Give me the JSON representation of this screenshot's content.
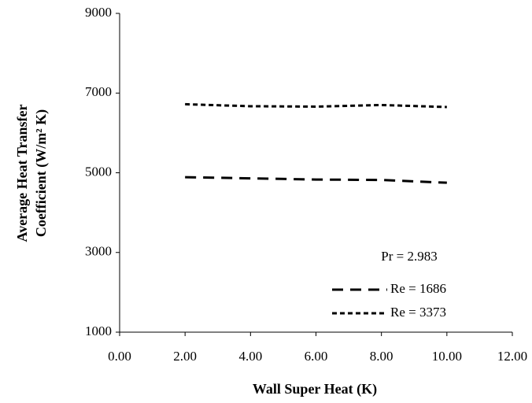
{
  "chart_data": {
    "type": "line",
    "xlabel": "Wall Super Heat (K)",
    "ylabel": [
      "Average Heat Transfer",
      "Coefficient (W/m² K)"
    ],
    "annotation": "Pr = 2.983",
    "x": [
      2,
      4,
      6,
      8,
      10
    ],
    "series": [
      {
        "name": "Re = 1686",
        "color": "#000000",
        "linestyle": "long-dash",
        "values": [
          4890,
          4860,
          4830,
          4820,
          4750
        ]
      },
      {
        "name": "Re = 3373",
        "color": "#000000",
        "linestyle": "short-dash",
        "values": [
          6720,
          6670,
          6660,
          6700,
          6650
        ]
      }
    ],
    "xlim": [
      0,
      12
    ],
    "xticks": [
      {
        "value": 0,
        "label": "0.00"
      },
      {
        "value": 2,
        "label": "2.00"
      },
      {
        "value": 4,
        "label": "4.00"
      },
      {
        "value": 6,
        "label": "6.00"
      },
      {
        "value": 8,
        "label": "8.00"
      },
      {
        "value": 10,
        "label": "10.00"
      },
      {
        "value": 12,
        "label": "12.00"
      }
    ],
    "ylim": [
      1000,
      9000
    ],
    "yticks": [
      1000,
      3000,
      5000,
      7000,
      9000
    ],
    "grid": false,
    "legend_position": "lower right"
  }
}
